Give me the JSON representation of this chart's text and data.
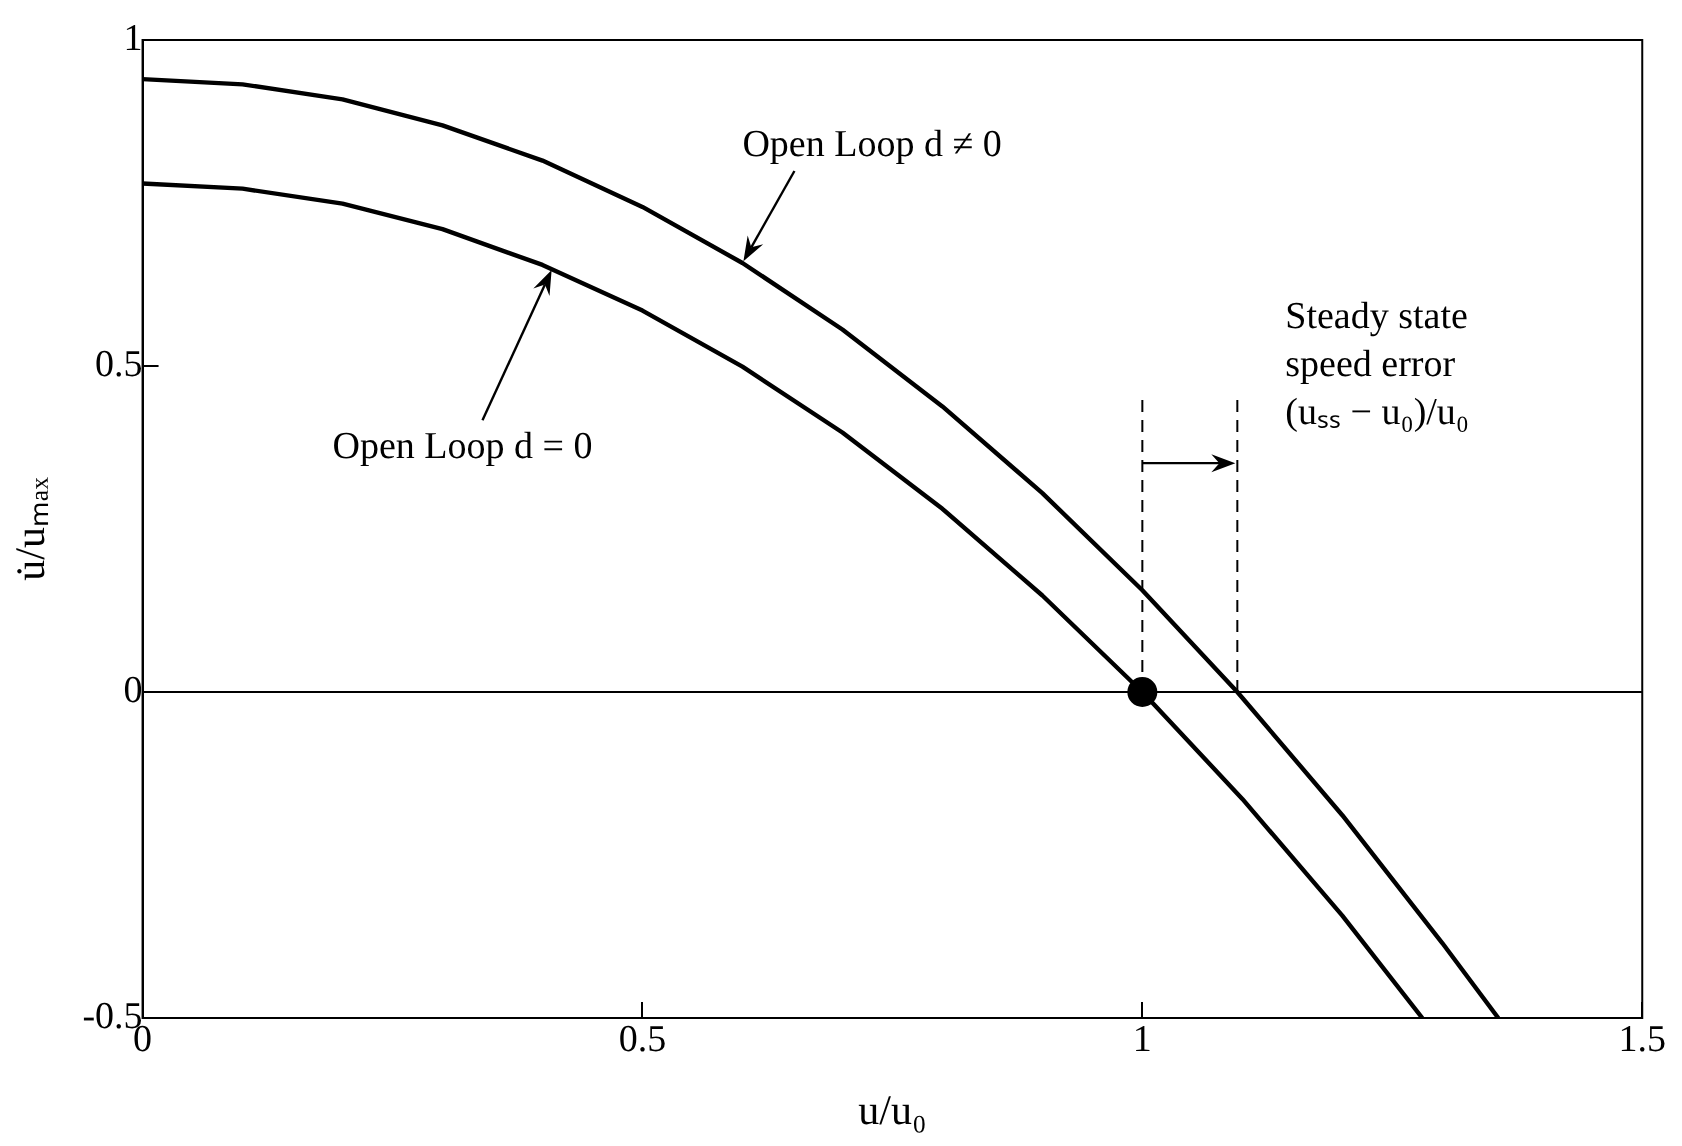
{
  "chart_data": {
    "type": "line",
    "xlabel": "u/u₀",
    "ylabel": "u̇/uₘₐₓ",
    "xlim": [
      0,
      1.5
    ],
    "xticks": [
      0,
      0.5,
      1,
      {
        "value": 1.5,
        "label": "1.5"
      }
    ],
    "ylim": [
      -0.5,
      1
    ],
    "yticks": [
      -0.5,
      0,
      0.5,
      1
    ],
    "grid": false,
    "legend": false,
    "marker": "none",
    "line_style": "solid",
    "series": [
      {
        "color": "#000000",
        "x": [
          0,
          0.1,
          0.2,
          0.3,
          0.4,
          0.5,
          0.6,
          0.7,
          0.8,
          0.9,
          1.0,
          1.1,
          1.2,
          1.28
        ],
        "values": [
          0.78,
          0.772,
          0.749,
          0.71,
          0.655,
          0.585,
          0.499,
          0.398,
          0.281,
          0.148,
          0,
          -0.164,
          -0.343,
          -0.5
        ]
      },
      {
        "color": "#000000",
        "x": [
          0,
          0.1,
          0.2,
          0.3,
          0.4,
          0.5,
          0.6,
          0.7,
          0.8,
          0.9,
          1.0,
          1.095,
          1.2,
          1.3,
          1.356
        ],
        "values": [
          0.94,
          0.932,
          0.909,
          0.869,
          0.815,
          0.744,
          0.658,
          0.556,
          0.438,
          0.305,
          0.156,
          0,
          -0.189,
          -0.385,
          -0.5
        ]
      },
      {
        "type": "line",
        "color": "#000000",
        "line_style": "dashed",
        "x": [
          1,
          1
        ],
        "values": [
          0,
          0.45
        ]
      },
      {
        "type": "line",
        "color": "#000000",
        "line_style": "dashed",
        "x": [
          1.095,
          1.095
        ],
        "values": [
          0,
          0.45
        ]
      },
      {
        "type": "scatter",
        "color": "#000000",
        "marker": "circle",
        "x": [
          1
        ],
        "values": [
          0
        ]
      }
    ],
    "ref_lines": [
      {
        "axis": "y",
        "value": 0,
        "color": "#000000",
        "line_style": "solid"
      }
    ],
    "annotations": [
      {
        "text": "Open Loop d ≠ 0",
        "x": 0.6,
        "y": 0.658
      },
      {
        "text": "Open Loop d = 0",
        "x": 0.41,
        "y": 0.65
      },
      "Steady state\nspeed error\n(uₛₛ − u₀)/u₀"
    ]
  }
}
